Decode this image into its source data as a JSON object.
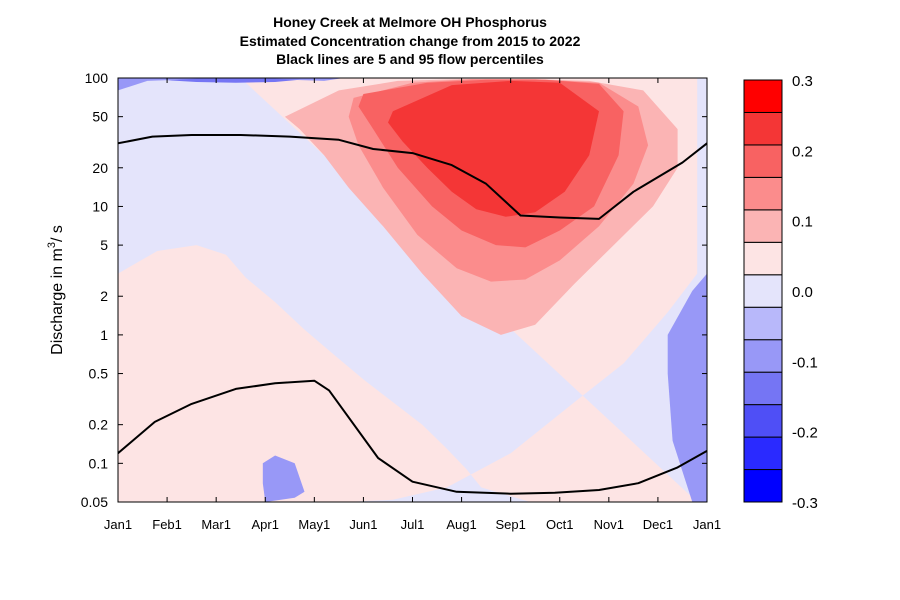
{
  "chart_data": {
    "type": "contour",
    "title": [
      "Honey Creek at Melmore OH  Phosphorus",
      "Estimated Concentration change from 2015 to 2022",
      "Black lines are 5 and 95 flow percentiles"
    ],
    "xlabel": "",
    "ylabel_prefix": "Discharge in m",
    "ylabel_sup": "3",
    "ylabel_suffix": "/ s",
    "yscale": "log",
    "ylim": [
      0.05,
      100
    ],
    "y_ticks": [
      100,
      50,
      20,
      10,
      5,
      2,
      1,
      0.5,
      0.2,
      0.1,
      0.05
    ],
    "y_tick_labels": [
      "100",
      "50",
      "20",
      "10",
      "5",
      "2",
      "1",
      "0.5",
      "0.2",
      "0.1",
      "0.05"
    ],
    "x_ticks": [
      0,
      1,
      2,
      3,
      4,
      5,
      6,
      7,
      8,
      9,
      10,
      11,
      12
    ],
    "x_tick_labels": [
      "Jan1",
      "Feb1",
      "Mar1",
      "Apr1",
      "May1",
      "Jun1",
      "Jul1",
      "Aug1",
      "Sep1",
      "Oct1",
      "Nov1",
      "Dec1",
      "Jan1"
    ],
    "colorbar": {
      "levels": [
        -0.3,
        -0.25,
        -0.2,
        -0.15,
        -0.1,
        -0.05,
        0.0,
        0.05,
        0.1,
        0.15,
        0.2,
        0.25,
        0.3
      ],
      "colors": [
        "#0000ff",
        "#2a2aff",
        "#4f4ff6",
        "#7575f4",
        "#9898f7",
        "#b8b8fa",
        "#e4e4fb",
        "#fde4e4",
        "#fbb4b4",
        "#fb8c8c",
        "#f86262",
        "#f43636",
        "#ff0000"
      ],
      "tick_values": [
        0.3,
        0.2,
        0.1,
        0.0,
        -0.1,
        -0.2,
        -0.3
      ],
      "tick_labels": [
        "0.3",
        "0.2",
        "0.1",
        "0.0",
        "-0.1",
        "-0.2",
        "-0.3"
      ]
    },
    "flow_percentile_lines": [
      {
        "label": "95",
        "x": [
          0,
          0.7,
          1.5,
          2.5,
          3.5,
          4.5,
          5.2,
          6.0,
          6.8,
          7.5,
          8.2,
          9.0,
          9.8,
          10.5,
          11.5,
          12
        ],
        "y": [
          31,
          35,
          36,
          36,
          35,
          33,
          28,
          26,
          21,
          15,
          8.5,
          8.2,
          8.0,
          13,
          22,
          31
        ]
      },
      {
        "label": "5",
        "x": [
          0,
          0.75,
          1.5,
          2.4,
          3.2,
          4.0,
          4.3,
          5.3,
          6.0,
          6.9,
          8.0,
          8.9,
          9.8,
          10.6,
          11.4,
          12
        ],
        "y": [
          0.12,
          0.21,
          0.29,
          0.38,
          0.42,
          0.44,
          0.37,
          0.11,
          0.072,
          0.06,
          0.058,
          0.059,
          0.062,
          0.07,
          0.093,
          0.125
        ]
      }
    ],
    "contour_regions": [
      {
        "level": 0.05,
        "x": [
          2.5,
          3.3,
          4.3,
          5.6,
          6.5,
          7.5,
          8.5,
          9.5,
          10.5,
          11.3,
          11.8,
          11.8,
          11.2,
          10.3,
          9.3,
          8.0,
          6.7,
          5.6,
          4.6,
          3.8,
          3.2,
          2.8,
          2.5,
          2.3,
          2.2,
          2.2,
          1.8,
          1.0,
          0.0,
          0.0,
          0.8,
          1.6,
          2.2,
          2.6,
          3.2,
          3.8,
          4.4,
          5.0,
          5.6,
          6.2,
          6.7,
          7.1,
          7.4,
          8.4,
          9.3,
          10.2,
          11.0,
          11.6,
          11.8
        ],
        "y": [
          100,
          100,
          100,
          100,
          100,
          100,
          100,
          100,
          100,
          100,
          100,
          3,
          1.5,
          0.6,
          0.3,
          0.12,
          0.065,
          0.052,
          0.05,
          0.05,
          0.05,
          0.05,
          0.05,
          0.05,
          0.05,
          0.05,
          0.05,
          0.05,
          0.05,
          3,
          4.5,
          5,
          4.2,
          2.8,
          1.8,
          1.1,
          0.7,
          0.45,
          0.3,
          0.2,
          0.13,
          0.09,
          0.065,
          0.05,
          0.05,
          0.05,
          0.05,
          0.05,
          0.05
        ]
      },
      {
        "level": 0.1,
        "x": [
          3.4,
          4.5,
          5.7,
          7.0,
          8.3,
          9.6,
          10.7,
          11.4,
          11.4,
          10.9,
          10.1,
          9.3,
          8.5,
          7.8,
          7.0,
          6.2,
          5.4,
          4.7,
          4.2,
          3.7,
          3.4
        ],
        "y": [
          50,
          80,
          95,
          98,
          98,
          95,
          80,
          40,
          20,
          10,
          5,
          2.5,
          1.2,
          1.0,
          1.4,
          3,
          7,
          14,
          25,
          40,
          50
        ]
      },
      {
        "level": 0.15,
        "x": [
          4.8,
          6.0,
          7.2,
          8.5,
          9.8,
          10.6,
          10.8,
          10.5,
          9.8,
          9.0,
          8.3,
          7.6,
          6.9,
          6.1,
          5.4,
          4.9,
          4.7
        ],
        "y": [
          70,
          92,
          98,
          98,
          92,
          60,
          30,
          15,
          7,
          3.8,
          2.7,
          2.6,
          3.3,
          6,
          14,
          30,
          50
        ]
      },
      {
        "level": 0.2,
        "x": [
          5.0,
          6.3,
          7.5,
          8.7,
          9.8,
          10.3,
          10.2,
          9.7,
          9.0,
          8.3,
          7.7,
          7.0,
          6.4,
          5.7,
          5.2,
          4.9
        ],
        "y": [
          75,
          92,
          97,
          97,
          90,
          55,
          25,
          10,
          6.5,
          4.8,
          5,
          6.5,
          10,
          20,
          40,
          60
        ]
      },
      {
        "level": 0.25,
        "x": [
          5.6,
          6.8,
          8.0,
          9.0,
          9.8,
          9.6,
          9.1,
          8.5,
          7.9,
          7.3,
          6.8,
          6.3,
          5.8,
          5.5
        ],
        "y": [
          55,
          88,
          95,
          92,
          55,
          25,
          13,
          9,
          8.3,
          9.5,
          13,
          20,
          32,
          45
        ]
      },
      {
        "level": -0.1,
        "x": [
          0.0,
          0.6,
          1.6,
          2.6,
          3.5,
          4.2,
          4.6,
          4.0,
          3.0,
          2.0,
          1.0,
          0.0
        ],
        "y": [
          80,
          95,
          98,
          98,
          97,
          95,
          100,
          100,
          100,
          100,
          100,
          100
        ]
      },
      {
        "level": -0.1,
        "x": [
          11.2,
          11.7,
          12.0,
          12.0,
          11.7,
          11.3,
          11.2
        ],
        "y": [
          1.0,
          2.2,
          3.0,
          0.05,
          0.05,
          0.15,
          0.5
        ]
      },
      {
        "level": -0.1,
        "x": [
          2.95,
          3.2,
          3.6,
          3.8,
          3.6,
          3.0,
          2.95
        ],
        "y": [
          0.1,
          0.115,
          0.1,
          0.06,
          0.054,
          0.05,
          0.07
        ]
      },
      {
        "level": -0.15,
        "x": [
          1.0,
          1.6,
          2.4,
          3.2,
          3.7,
          3.2,
          2.4,
          1.6,
          1.0
        ],
        "y": [
          96,
          99,
          99,
          99,
          97,
          93,
          92,
          93,
          96
        ]
      }
    ]
  }
}
